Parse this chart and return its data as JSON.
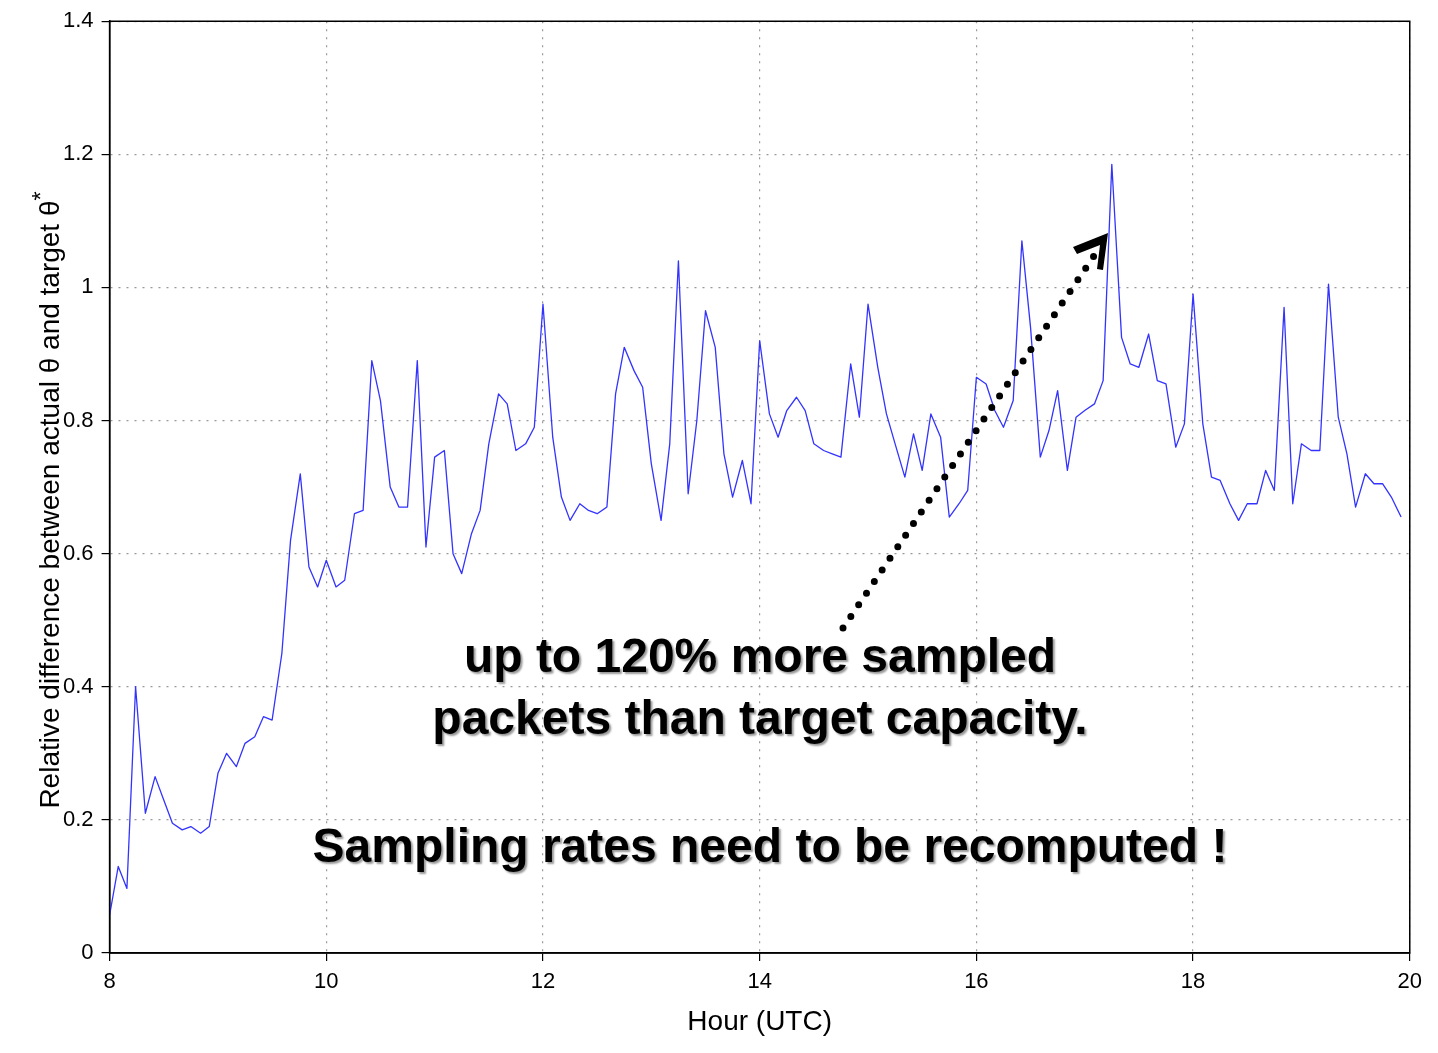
{
  "chart_data": {
    "type": "line",
    "xlabel": "Hour (UTC)",
    "ylabel": "Relative difference between actual θ and target θ$^{*}$",
    "x": [
      8.0,
      8.08,
      8.16,
      8.24,
      8.33,
      8.42,
      8.5,
      8.58,
      8.67,
      8.75,
      8.84,
      8.92,
      9.0,
      9.08,
      9.17,
      9.25,
      9.34,
      9.42,
      9.5,
      9.59,
      9.67,
      9.76,
      9.84,
      9.92,
      10.0,
      10.09,
      10.17,
      10.26,
      10.34,
      10.42,
      10.5,
      10.59,
      10.67,
      10.75,
      10.84,
      10.92,
      11.0,
      11.09,
      11.17,
      11.25,
      11.34,
      11.42,
      11.5,
      11.59,
      11.67,
      11.75,
      11.84,
      11.92,
      12.0,
      12.09,
      12.17,
      12.25,
      12.34,
      12.42,
      12.5,
      12.59,
      12.67,
      12.75,
      12.84,
      12.92,
      13.0,
      13.09,
      13.17,
      13.25,
      13.34,
      13.42,
      13.5,
      13.59,
      13.67,
      13.75,
      13.84,
      13.92,
      14.0,
      14.09,
      14.17,
      14.25,
      14.34,
      14.42,
      14.5,
      14.59,
      14.67,
      14.75,
      14.84,
      14.92,
      15.0,
      15.09,
      15.17,
      15.25,
      15.34,
      15.42,
      15.5,
      15.58,
      15.67,
      15.75,
      15.84,
      15.92,
      16.0,
      16.09,
      16.17,
      16.25,
      16.34,
      16.42,
      16.5,
      16.59,
      16.67,
      16.75,
      16.84,
      16.92,
      17.0,
      17.09,
      17.17,
      17.25,
      17.34,
      17.42,
      17.5,
      17.59,
      17.67,
      17.75,
      17.84,
      17.92,
      18.0,
      18.09,
      18.17,
      18.25,
      18.34,
      18.42,
      18.5,
      18.59,
      18.67,
      18.75,
      18.84,
      18.92,
      19.0,
      19.09,
      19.17,
      19.25,
      19.34,
      19.42,
      19.5,
      19.59,
      19.67,
      19.75,
      19.83,
      19.92
    ],
    "series": [
      {
        "color": "#3333ff",
        "values": [
          0.057,
          0.13,
          0.097,
          0.4,
          0.21,
          0.265,
          0.23,
          0.195,
          0.185,
          0.19,
          0.18,
          0.19,
          0.27,
          0.3,
          0.28,
          0.315,
          0.325,
          0.355,
          0.35,
          0.45,
          0.62,
          0.72,
          0.58,
          0.55,
          0.59,
          0.55,
          0.56,
          0.66,
          0.665,
          0.89,
          0.83,
          0.7,
          0.67,
          0.67,
          0.89,
          0.61,
          0.745,
          0.755,
          0.6,
          0.57,
          0.63,
          0.665,
          0.765,
          0.84,
          0.825,
          0.755,
          0.765,
          0.79,
          0.975,
          0.775,
          0.685,
          0.65,
          0.675,
          0.665,
          0.66,
          0.67,
          0.84,
          0.91,
          0.875,
          0.85,
          0.735,
          0.65,
          0.765,
          1.04,
          0.69,
          0.8,
          0.965,
          0.91,
          0.75,
          0.685,
          0.74,
          0.675,
          0.92,
          0.81,
          0.775,
          0.815,
          0.835,
          0.815,
          0.765,
          0.755,
          0.75,
          0.745,
          0.885,
          0.805,
          0.975,
          0.88,
          0.81,
          0.765,
          0.715,
          0.78,
          0.725,
          0.81,
          0.775,
          0.655,
          0.675,
          0.695,
          0.865,
          0.855,
          0.815,
          0.79,
          0.83,
          1.07,
          0.94,
          0.745,
          0.785,
          0.845,
          0.725,
          0.805,
          0.815,
          0.825,
          0.86,
          1.185,
          0.925,
          0.885,
          0.88,
          0.93,
          0.86,
          0.855,
          0.76,
          0.795,
          0.99,
          0.795,
          0.715,
          0.71,
          0.675,
          0.65,
          0.675,
          0.675,
          0.725,
          0.695,
          0.97,
          0.675,
          0.765,
          0.755,
          0.755,
          1.005,
          0.805,
          0.75,
          0.67,
          0.72,
          0.705,
          0.705,
          0.685,
          0.655
        ]
      }
    ],
    "xlim": [
      8,
      20
    ],
    "xticks": [
      8,
      10,
      12,
      14,
      16,
      18,
      20
    ],
    "ylim": [
      0,
      1.4
    ],
    "yticks": [
      0,
      0.2,
      0.4,
      0.6,
      0.8,
      1,
      1.2,
      1.4
    ],
    "grid": true,
    "legend": false,
    "marker": "none",
    "line_style": "solid",
    "annotations": [
      "up to 120% more sampled packets than target capacity.",
      "Sampling rates need to be recomputed !"
    ]
  }
}
